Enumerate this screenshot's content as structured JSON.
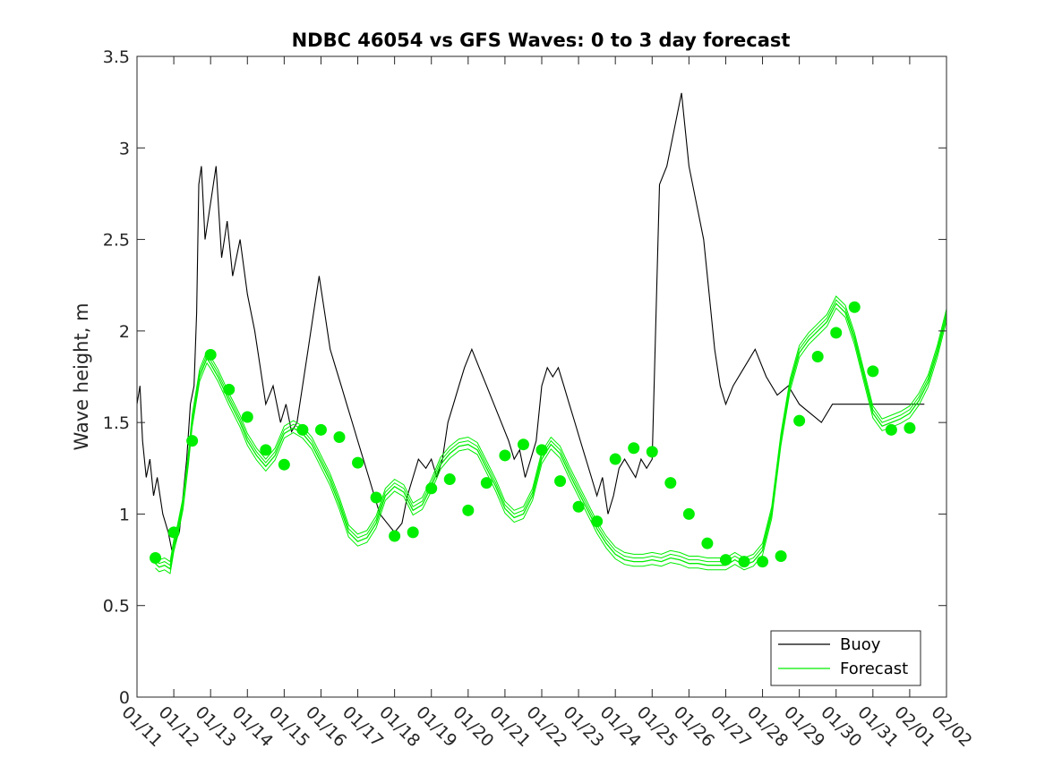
{
  "chart_data": {
    "type": "line",
    "title": "NDBC 46054 vs GFS Waves: 0 to 3 day forecast",
    "xlabel": "",
    "ylabel": "Wave height, m",
    "ylim": [
      0,
      3.5
    ],
    "yticks": [
      "0",
      "0.5",
      "1",
      "1.5",
      "2",
      "2.5",
      "3",
      "3.5"
    ],
    "xlim": [
      0,
      22
    ],
    "xticks": [
      "01/11",
      "01/12",
      "01/13",
      "01/14",
      "01/15",
      "01/16",
      "01/17",
      "01/18",
      "01/19",
      "01/20",
      "01/21",
      "01/22",
      "01/23",
      "01/24",
      "01/25",
      "01/26",
      "01/27",
      "01/28",
      "01/29",
      "01/30",
      "01/31",
      "02/01",
      "02/02"
    ],
    "legend": {
      "position": "bottom-right",
      "entries": [
        "Buoy",
        "Forecast"
      ]
    },
    "colors": {
      "buoy": "#000000",
      "forecast": "#00ee00",
      "axes": "#262626"
    },
    "series": [
      {
        "name": "Buoy",
        "x": [
          0,
          0.08,
          0.15,
          0.25,
          0.35,
          0.45,
          0.55,
          0.7,
          0.85,
          0.95,
          1.05,
          1.15,
          1.25,
          1.35,
          1.45,
          1.55,
          1.62,
          1.68,
          1.75,
          1.85,
          2.0,
          2.15,
          2.3,
          2.45,
          2.6,
          2.8,
          3.0,
          3.2,
          3.35,
          3.5,
          3.7,
          3.9,
          4.05,
          4.2,
          4.35,
          4.5,
          4.65,
          4.8,
          4.95,
          5.1,
          5.25,
          5.4,
          5.55,
          5.7,
          5.85,
          6.0,
          6.15,
          6.3,
          6.45,
          6.6,
          6.8,
          7.0,
          7.2,
          7.35,
          7.5,
          7.65,
          7.85,
          8.0,
          8.15,
          8.3,
          8.45,
          8.6,
          8.75,
          8.9,
          9.1,
          9.3,
          9.5,
          9.7,
          9.9,
          10.1,
          10.25,
          10.4,
          10.55,
          10.7,
          10.85,
          11.0,
          11.15,
          11.3,
          11.45,
          11.6,
          11.75,
          11.9,
          12.05,
          12.2,
          12.35,
          12.5,
          12.65,
          12.8,
          12.95,
          13.1,
          13.25,
          13.4,
          13.55,
          13.7,
          13.85,
          14.0,
          14.2,
          14.4,
          14.6,
          14.8,
          15.0,
          15.2,
          15.4,
          15.55,
          15.7,
          15.85,
          16.0,
          16.2,
          16.5,
          16.8,
          17.1,
          17.4,
          17.7,
          18.0,
          18.3,
          18.6,
          18.9,
          19.15,
          19.3,
          19.45,
          19.6,
          19.75,
          19.9,
          20.05,
          20.2,
          20.35,
          20.5,
          20.65,
          20.8,
          20.95,
          21.1,
          21.25,
          21.4
        ],
        "y": [
          1.6,
          1.7,
          1.4,
          1.2,
          1.3,
          1.1,
          1.2,
          1.0,
          0.9,
          0.8,
          0.85,
          0.9,
          1.1,
          1.3,
          1.6,
          1.7,
          2.1,
          2.8,
          2.9,
          2.5,
          2.7,
          2.9,
          2.4,
          2.6,
          2.3,
          2.5,
          2.2,
          2.0,
          1.8,
          1.6,
          1.7,
          1.5,
          1.6,
          1.45,
          1.5,
          1.7,
          1.9,
          2.1,
          2.3,
          2.1,
          1.9,
          1.8,
          1.7,
          1.6,
          1.5,
          1.4,
          1.3,
          1.2,
          1.1,
          1.0,
          0.95,
          0.9,
          0.95,
          1.1,
          1.2,
          1.3,
          1.25,
          1.3,
          1.2,
          1.3,
          1.5,
          1.6,
          1.7,
          1.8,
          1.9,
          1.8,
          1.7,
          1.6,
          1.5,
          1.4,
          1.3,
          1.35,
          1.2,
          1.3,
          1.4,
          1.7,
          1.8,
          1.75,
          1.8,
          1.7,
          1.6,
          1.5,
          1.4,
          1.3,
          1.2,
          1.1,
          1.2,
          1.0,
          1.1,
          1.25,
          1.3,
          1.25,
          1.2,
          1.3,
          1.25,
          1.3,
          2.8,
          2.9,
          3.1,
          3.3,
          2.9,
          2.7,
          2.5,
          2.2,
          1.9,
          1.7,
          1.6,
          1.7,
          1.8,
          1.9,
          1.75,
          1.65,
          1.7,
          1.6,
          1.55,
          1.5,
          1.6,
          1.6,
          1.6,
          1.6,
          1.6,
          1.6,
          1.6,
          1.6,
          1.6,
          1.6,
          1.6,
          1.6,
          1.6,
          1.6,
          1.6,
          1.6,
          1.6
        ]
      },
      {
        "name": "Forecast",
        "x": [
          0.5,
          0.6,
          0.75,
          0.9,
          1.0,
          1.1,
          1.25,
          1.4,
          1.5,
          1.7,
          1.9,
          2.0,
          2.2,
          2.5,
          2.8,
          3.0,
          3.25,
          3.5,
          3.75,
          4.0,
          4.25,
          4.5,
          4.75,
          5.0,
          5.25,
          5.5,
          5.75,
          6.0,
          6.25,
          6.5,
          6.75,
          7.0,
          7.25,
          7.5,
          7.75,
          8.0,
          8.25,
          8.5,
          8.75,
          9.0,
          9.25,
          9.5,
          9.75,
          10.0,
          10.25,
          10.5,
          10.75,
          11.0,
          11.25,
          11.5,
          11.75,
          12.0,
          12.25,
          12.5,
          12.75,
          13.0,
          13.25,
          13.5,
          13.75,
          14.0,
          14.25,
          14.5,
          14.75,
          15.0,
          15.25,
          15.5,
          15.75,
          16.0,
          16.25,
          16.5,
          16.75,
          17.0,
          17.25,
          17.5,
          17.75,
          18.0,
          18.25,
          18.5,
          18.75,
          19.0,
          19.25,
          19.5,
          19.75,
          20.0,
          20.25,
          20.5,
          20.75,
          21.0,
          21.25,
          21.5,
          21.75,
          22.0
        ],
        "y": [
          0.73,
          0.71,
          0.72,
          0.7,
          0.82,
          0.9,
          1.05,
          1.3,
          1.5,
          1.75,
          1.85,
          1.82,
          1.75,
          1.62,
          1.5,
          1.4,
          1.32,
          1.26,
          1.32,
          1.44,
          1.47,
          1.44,
          1.38,
          1.28,
          1.18,
          1.05,
          0.9,
          0.85,
          0.87,
          0.95,
          1.1,
          1.15,
          1.12,
          1.02,
          1.05,
          1.15,
          1.27,
          1.33,
          1.37,
          1.38,
          1.35,
          1.25,
          1.15,
          1.03,
          0.98,
          1.0,
          1.1,
          1.3,
          1.38,
          1.33,
          1.22,
          1.12,
          1.02,
          0.92,
          0.84,
          0.78,
          0.75,
          0.74,
          0.74,
          0.75,
          0.74,
          0.76,
          0.75,
          0.73,
          0.73,
          0.72,
          0.72,
          0.72,
          0.75,
          0.72,
          0.74,
          0.8,
          1.0,
          1.4,
          1.7,
          1.88,
          1.95,
          2.0,
          2.05,
          2.15,
          2.1,
          1.95,
          1.75,
          1.55,
          1.48,
          1.5,
          1.52,
          1.55,
          1.62,
          1.72,
          1.88,
          2.08
        ]
      },
      {
        "name": "Forecast markers",
        "x": [
          0.5,
          1.0,
          1.5,
          2.0,
          2.5,
          3.0,
          3.5,
          4.0,
          4.5,
          5.0,
          5.5,
          6.0,
          6.5,
          7.0,
          7.5,
          8.0,
          8.5,
          9.0,
          9.5,
          10.0,
          10.5,
          11.0,
          11.5,
          12.0,
          12.5,
          13.0,
          13.5,
          14.0,
          14.5,
          15.0,
          15.5,
          16.0,
          16.5,
          17.0,
          17.5,
          18.0,
          18.5,
          19.0,
          19.5,
          20.0,
          20.5,
          21.0
        ],
        "y": [
          0.76,
          0.9,
          1.4,
          1.87,
          1.68,
          1.53,
          1.35,
          1.27,
          1.46,
          1.46,
          1.42,
          1.28,
          1.09,
          0.88,
          0.9,
          1.14,
          1.19,
          1.02,
          1.17,
          1.32,
          1.38,
          1.35,
          1.18,
          1.04,
          0.96,
          1.3,
          1.36,
          1.34,
          1.17,
          1.0,
          0.84,
          0.75,
          0.74,
          0.74,
          0.77,
          1.51,
          1.86,
          1.99,
          2.13,
          1.78,
          1.46,
          1.47
        ]
      }
    ]
  }
}
